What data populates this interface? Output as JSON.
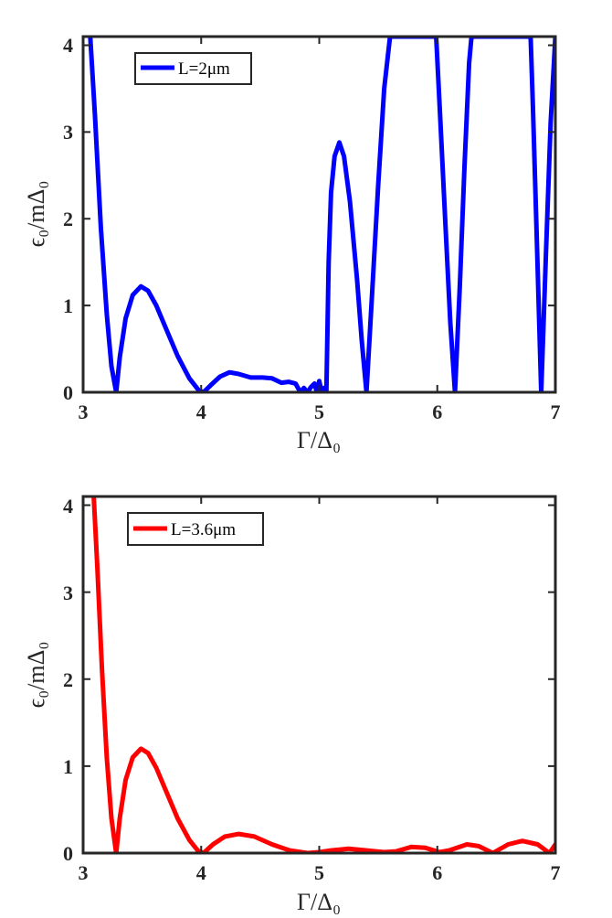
{
  "chart_data": [
    {
      "type": "line",
      "xlabel": "Γ/Δ₀",
      "ylabel": "ϵ₀/mΔ₀",
      "xlim": [
        3,
        7
      ],
      "ylim": [
        0,
        4.1
      ],
      "xticks": [
        "3",
        "4",
        "5",
        "6",
        "7"
      ],
      "yticks": [
        "0",
        "1",
        "2",
        "3",
        "4"
      ],
      "grid": false,
      "legend_position": "top-left",
      "series": [
        {
          "name": "L=2μm",
          "color": "#0000ff",
          "points": [
            [
              3.06,
              4.1
            ],
            [
              3.1,
              3.2
            ],
            [
              3.15,
              1.9
            ],
            [
              3.2,
              0.9
            ],
            [
              3.24,
              0.3
            ],
            [
              3.28,
              0.0
            ],
            [
              3.31,
              0.4
            ],
            [
              3.36,
              0.85
            ],
            [
              3.42,
              1.12
            ],
            [
              3.49,
              1.22
            ],
            [
              3.55,
              1.17
            ],
            [
              3.62,
              1.0
            ],
            [
              3.7,
              0.74
            ],
            [
              3.8,
              0.42
            ],
            [
              3.9,
              0.16
            ],
            [
              3.98,
              0.02
            ],
            [
              4.02,
              0.0
            ],
            [
              4.08,
              0.08
            ],
            [
              4.16,
              0.18
            ],
            [
              4.24,
              0.23
            ],
            [
              4.32,
              0.21
            ],
            [
              4.42,
              0.17
            ],
            [
              4.52,
              0.17
            ],
            [
              4.6,
              0.16
            ],
            [
              4.68,
              0.11
            ],
            [
              4.74,
              0.12
            ],
            [
              4.8,
              0.1
            ],
            [
              4.84,
              0.0
            ],
            [
              4.87,
              0.05
            ],
            [
              4.9,
              0.0
            ],
            [
              4.93,
              0.06
            ],
            [
              4.96,
              0.1
            ],
            [
              4.98,
              0.0
            ],
            [
              5.0,
              0.13
            ],
            [
              5.02,
              0.0
            ],
            [
              5.04,
              0.05
            ],
            [
              5.06,
              0.0
            ],
            [
              5.08,
              1.5
            ],
            [
              5.1,
              2.3
            ],
            [
              5.13,
              2.72
            ],
            [
              5.17,
              2.88
            ],
            [
              5.21,
              2.72
            ],
            [
              5.26,
              2.2
            ],
            [
              5.32,
              1.3
            ],
            [
              5.36,
              0.6
            ],
            [
              5.4,
              0.0
            ],
            [
              5.45,
              1.2
            ],
            [
              5.5,
              2.4
            ],
            [
              5.55,
              3.5
            ],
            [
              5.6,
              4.1
            ],
            [
              5.99,
              4.1
            ],
            [
              6.02,
              3.3
            ],
            [
              6.07,
              1.9
            ],
            [
              6.11,
              0.8
            ],
            [
              6.15,
              0.0
            ],
            [
              6.19,
              1.2
            ],
            [
              6.23,
              2.6
            ],
            [
              6.27,
              3.8
            ],
            [
              6.29,
              4.1
            ],
            [
              6.79,
              4.1
            ],
            [
              6.81,
              3.3
            ],
            [
              6.84,
              1.9
            ],
            [
              6.88,
              0.0
            ],
            [
              6.92,
              1.6
            ],
            [
              6.96,
              3.1
            ],
            [
              7.0,
              4.1
            ]
          ]
        }
      ]
    },
    {
      "type": "line",
      "xlabel": "Γ/Δ₀",
      "ylabel": "ϵ₀/mΔ₀",
      "xlim": [
        3,
        7
      ],
      "ylim": [
        0,
        4.1
      ],
      "xticks": [
        "3",
        "4",
        "5",
        "6",
        "7"
      ],
      "yticks": [
        "0",
        "1",
        "2",
        "3",
        "4"
      ],
      "grid": false,
      "legend_position": "top-left",
      "series": [
        {
          "name": "L=3.6μm",
          "color": "#ff0000",
          "points": [
            [
              3.09,
              4.1
            ],
            [
              3.12,
              3.3
            ],
            [
              3.16,
              2.1
            ],
            [
              3.2,
              1.1
            ],
            [
              3.24,
              0.4
            ],
            [
              3.28,
              0.0
            ],
            [
              3.31,
              0.4
            ],
            [
              3.36,
              0.84
            ],
            [
              3.42,
              1.1
            ],
            [
              3.49,
              1.2
            ],
            [
              3.55,
              1.15
            ],
            [
              3.62,
              0.98
            ],
            [
              3.7,
              0.72
            ],
            [
              3.8,
              0.4
            ],
            [
              3.9,
              0.15
            ],
            [
              3.97,
              0.03
            ],
            [
              4.02,
              0.0
            ],
            [
              4.1,
              0.1
            ],
            [
              4.2,
              0.19
            ],
            [
              4.32,
              0.22
            ],
            [
              4.45,
              0.19
            ],
            [
              4.6,
              0.1
            ],
            [
              4.75,
              0.03
            ],
            [
              4.9,
              0.0
            ],
            [
              5.0,
              0.01
            ],
            [
              5.1,
              0.03
            ],
            [
              5.25,
              0.05
            ],
            [
              5.4,
              0.03
            ],
            [
              5.55,
              0.01
            ],
            [
              5.65,
              0.02
            ],
            [
              5.78,
              0.07
            ],
            [
              5.9,
              0.06
            ],
            [
              6.02,
              0.01
            ],
            [
              6.1,
              0.03
            ],
            [
              6.25,
              0.1
            ],
            [
              6.35,
              0.08
            ],
            [
              6.47,
              0.0
            ],
            [
              6.6,
              0.1
            ],
            [
              6.72,
              0.14
            ],
            [
              6.85,
              0.1
            ],
            [
              6.95,
              0.0
            ],
            [
              7.0,
              0.1
            ]
          ]
        }
      ]
    }
  ]
}
